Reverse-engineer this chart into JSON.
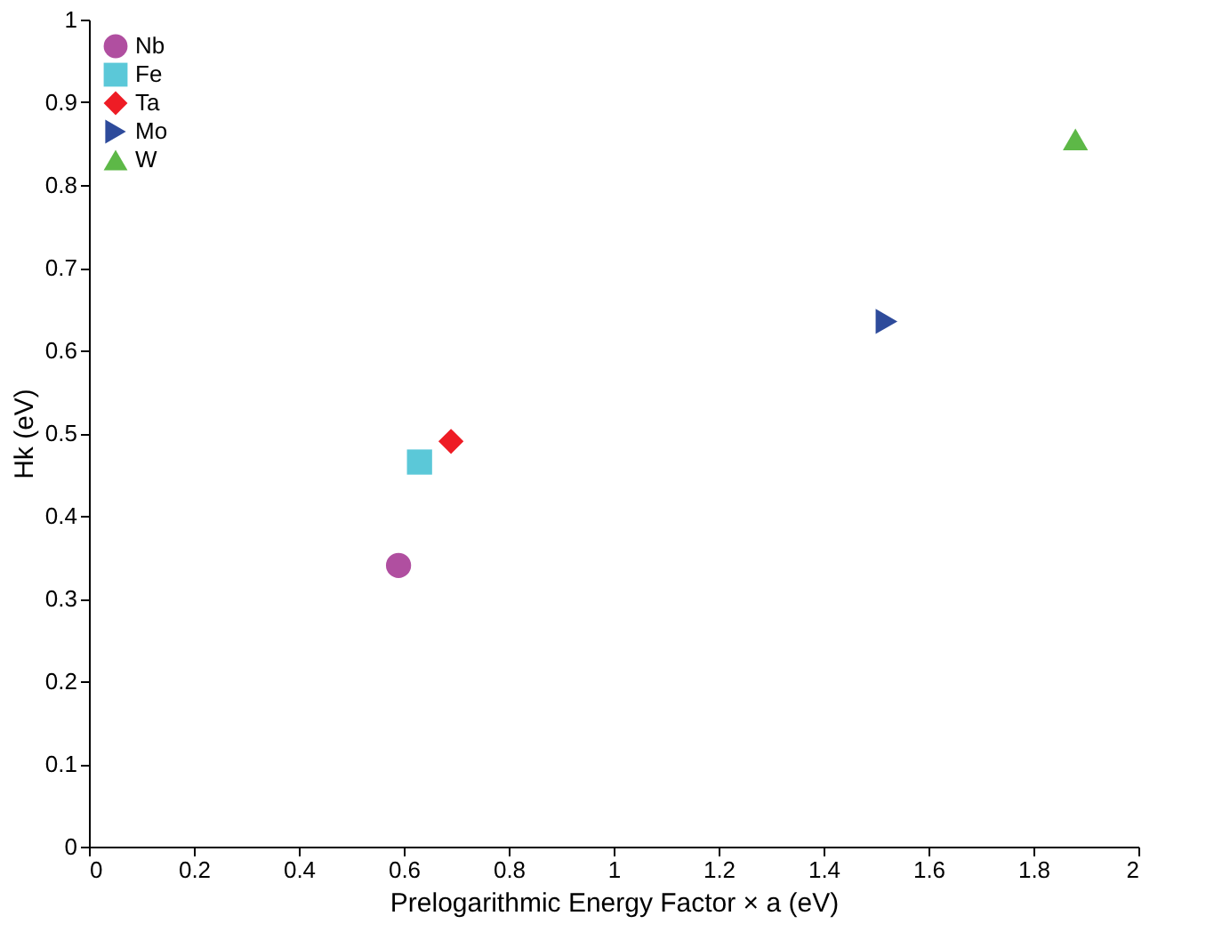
{
  "chart_data": {
    "type": "scatter",
    "xlabel": "Prelogarithmic Energy Factor × a (eV)",
    "ylabel": "Hk (eV)",
    "series": [
      {
        "name": "Nb",
        "color": "#b04fa0",
        "marker": "circle",
        "x": [
          0.59
        ],
        "values": [
          0.34
        ]
      },
      {
        "name": "Fe",
        "color": "#5bc8d8",
        "marker": "square",
        "x": [
          0.63
        ],
        "values": [
          0.465
        ]
      },
      {
        "name": "Ta",
        "color": "#ee1c25",
        "marker": "diamond",
        "x": [
          0.69
        ],
        "values": [
          0.49
        ]
      },
      {
        "name": "Mo",
        "color": "#2e4b9b",
        "marker": "triangle-right",
        "x": [
          1.52
        ],
        "values": [
          0.635
        ]
      },
      {
        "name": "W",
        "color": "#5db847",
        "marker": "triangle",
        "x": [
          1.88
        ],
        "values": [
          0.855
        ]
      }
    ],
    "xlim": [
      0,
      2
    ],
    "xticks": [
      0,
      0.2,
      0.4,
      0.6,
      0.8,
      1,
      1.2,
      1.4,
      1.6,
      1.8,
      2
    ],
    "ylim": [
      0,
      1
    ],
    "yticks": [
      0,
      0.1,
      0.2,
      0.3,
      0.4,
      0.5,
      0.6,
      0.7,
      0.8,
      0.9,
      1
    ],
    "grid": false,
    "legend": "top left"
  }
}
